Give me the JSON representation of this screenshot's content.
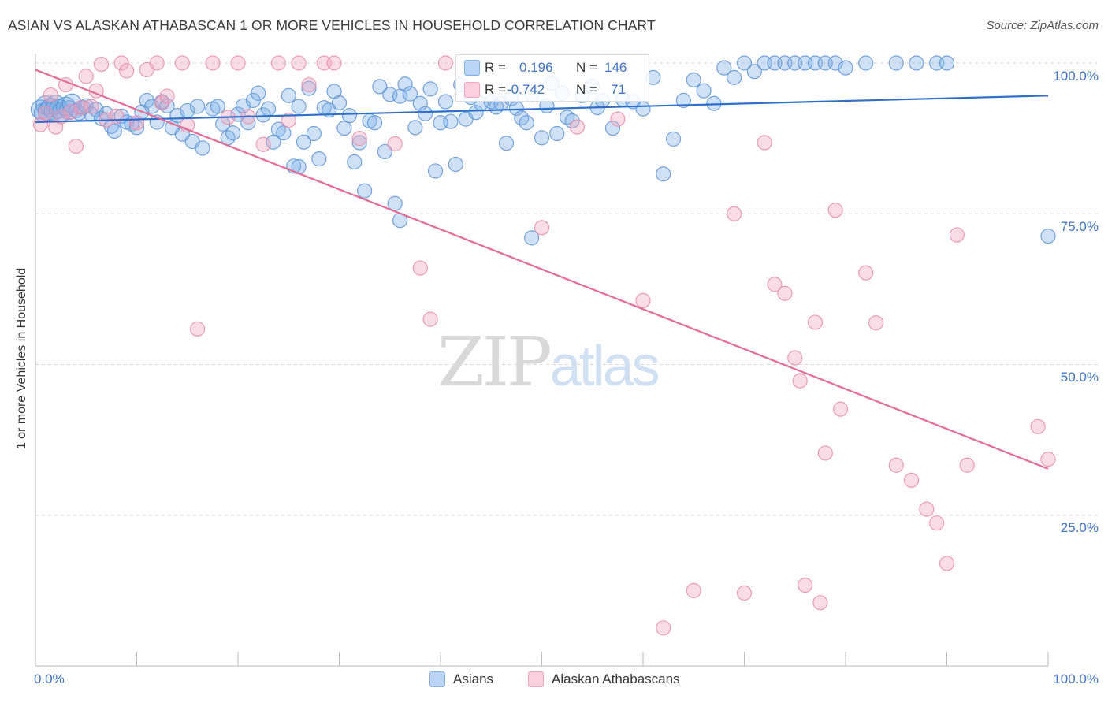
{
  "header": {
    "title": "ASIAN VS ALASKAN ATHABASCAN 1 OR MORE VEHICLES IN HOUSEHOLD CORRELATION CHART",
    "source": "Source: ZipAtlas.com"
  },
  "watermark": {
    "zip": "ZIP",
    "atlas": "atlas"
  },
  "stats": {
    "rows": [
      {
        "r_label": "R =",
        "r_value": "0.196",
        "n_label": "N =",
        "n_value": "146",
        "color": "#7fb0e8"
      },
      {
        "r_label": "R =",
        "r_value": "-0.742",
        "n_label": "N =",
        "n_value": "71",
        "color": "#f3a3bd"
      }
    ]
  },
  "chart_data": {
    "type": "scatter",
    "title": "ASIAN VS ALASKAN ATHABASCAN 1 OR MORE VEHICLES IN HOUSEHOLD CORRELATION CHART",
    "xlabel": "",
    "ylabel": "1 or more Vehicles in Household",
    "xlim": [
      0,
      100
    ],
    "ylim": [
      0,
      100
    ],
    "x_tick_labels": [
      "0.0%",
      "100.0%"
    ],
    "y_tick_labels": [
      {
        "value": 100,
        "label": "100.0%"
      },
      {
        "value": 75,
        "label": "75.0%"
      },
      {
        "value": 50,
        "label": "50.0%"
      },
      {
        "value": 25,
        "label": "25.0%"
      }
    ],
    "grid": true,
    "legend": "bottom-center",
    "series": [
      {
        "name": "Asians",
        "color": "#7fb0e8",
        "stroke": "#5a93d8",
        "trend": {
          "x": [
            0,
            100
          ],
          "y": [
            90.2,
            94.6
          ],
          "color": "#2f6fcc"
        },
        "points": [
          [
            0.5,
            92.3
          ],
          [
            0.8,
            91.8
          ],
          [
            1.0,
            93.0
          ],
          [
            1.2,
            92.0
          ],
          [
            1.5,
            92.6
          ],
          [
            1.8,
            92.1
          ],
          [
            2.0,
            93.1
          ],
          [
            2.3,
            92.4
          ],
          [
            2.6,
            91.9
          ],
          [
            3.0,
            92.8
          ],
          [
            3.3,
            92.2
          ],
          [
            3.6,
            93.3
          ],
          [
            4.0,
            92.1
          ],
          [
            4.3,
            91.7
          ],
          [
            4.7,
            92.6
          ],
          [
            5.0,
            92.9
          ],
          [
            5.5,
            91.5
          ],
          [
            6.0,
            92.3
          ],
          [
            6.5,
            90.8
          ],
          [
            7.0,
            91.6
          ],
          [
            7.5,
            89.5
          ],
          [
            7.8,
            88.7
          ],
          [
            8.5,
            91.2
          ],
          [
            9.0,
            90.2
          ],
          [
            9.5,
            89.9
          ],
          [
            10.0,
            89.3
          ],
          [
            10.5,
            91.9
          ],
          [
            11.0,
            93.8
          ],
          [
            11.5,
            92.8
          ],
          [
            12.0,
            90.2
          ],
          [
            12.5,
            93.6
          ],
          [
            13.0,
            92.9
          ],
          [
            13.5,
            89.3
          ],
          [
            14.0,
            91.3
          ],
          [
            14.5,
            88.2
          ],
          [
            15.0,
            92.1
          ],
          [
            15.5,
            87.0
          ],
          [
            16.0,
            92.8
          ],
          [
            16.5,
            85.9
          ],
          [
            17.5,
            92.4
          ],
          [
            18.0,
            92.8
          ],
          [
            18.5,
            89.9
          ],
          [
            19.0,
            87.6
          ],
          [
            19.5,
            88.4
          ],
          [
            20.0,
            91.5
          ],
          [
            20.5,
            92.9
          ],
          [
            21.0,
            90.1
          ],
          [
            21.5,
            93.8
          ],
          [
            22.0,
            95.0
          ],
          [
            22.5,
            91.4
          ],
          [
            23.0,
            92.4
          ],
          [
            23.5,
            86.9
          ],
          [
            24.0,
            89.0
          ],
          [
            24.5,
            88.4
          ],
          [
            25.0,
            94.6
          ],
          [
            25.5,
            82.9
          ],
          [
            26.0,
            92.8
          ],
          [
            26.5,
            86.9
          ],
          [
            27.0,
            95.8
          ],
          [
            27.5,
            88.3
          ],
          [
            28.0,
            84.1
          ],
          [
            28.5,
            92.6
          ],
          [
            29.0,
            92.2
          ],
          [
            29.5,
            95.3
          ],
          [
            30.0,
            93.4
          ],
          [
            30.5,
            89.2
          ],
          [
            31.0,
            91.3
          ],
          [
            31.5,
            83.6
          ],
          [
            32.0,
            86.8
          ],
          [
            32.5,
            78.8
          ],
          [
            33.0,
            90.4
          ],
          [
            33.5,
            90.1
          ],
          [
            34.0,
            96.1
          ],
          [
            34.5,
            85.3
          ],
          [
            35.0,
            94.8
          ],
          [
            35.5,
            76.7
          ],
          [
            36.0,
            94.5
          ],
          [
            36.5,
            96.5
          ],
          [
            37.0,
            94.9
          ],
          [
            37.5,
            89.3
          ],
          [
            38.0,
            93.3
          ],
          [
            38.5,
            91.6
          ],
          [
            39.0,
            95.7
          ],
          [
            39.5,
            82.1
          ],
          [
            40.0,
            90.1
          ],
          [
            40.5,
            93.6
          ],
          [
            41.0,
            90.3
          ],
          [
            41.5,
            83.2
          ],
          [
            42.0,
            96.4
          ],
          [
            42.5,
            90.7
          ],
          [
            43.0,
            94.3
          ],
          [
            43.5,
            91.8
          ],
          [
            44.0,
            93.3
          ],
          [
            45.0,
            93.6
          ],
          [
            45.5,
            92.7
          ],
          [
            46.0,
            93.3
          ],
          [
            46.5,
            86.7
          ],
          [
            47.0,
            94.1
          ],
          [
            47.5,
            92.5
          ],
          [
            48.0,
            90.9
          ],
          [
            48.5,
            90.1
          ],
          [
            49.0,
            94.8
          ],
          [
            50.0,
            87.6
          ],
          [
            50.5,
            92.9
          ],
          [
            51.0,
            96.6
          ],
          [
            51.5,
            88.3
          ],
          [
            52.0,
            95.0
          ],
          [
            52.5,
            91.0
          ],
          [
            53.0,
            90.4
          ],
          [
            54.0,
            94.6
          ],
          [
            55.0,
            96.1
          ],
          [
            55.5,
            92.6
          ],
          [
            56.0,
            93.8
          ],
          [
            57.0,
            89.2
          ],
          [
            58.0,
            94.0
          ],
          [
            59.0,
            93.6
          ],
          [
            60.0,
            92.4
          ],
          [
            61.0,
            97.6
          ],
          [
            62.0,
            81.6
          ],
          [
            63.0,
            87.4
          ],
          [
            64.0,
            93.8
          ],
          [
            65.0,
            97.2
          ],
          [
            66.0,
            95.4
          ],
          [
            67.0,
            93.3
          ],
          [
            68.0,
            99.2
          ],
          [
            69.0,
            97.6
          ],
          [
            70.0,
            100.0
          ],
          [
            71.0,
            98.6
          ],
          [
            72.0,
            100.0
          ],
          [
            73.0,
            100.0
          ],
          [
            74.0,
            100.0
          ],
          [
            75.0,
            100.0
          ],
          [
            76.0,
            100.0
          ],
          [
            77.0,
            100.0
          ],
          [
            78.0,
            100.0
          ],
          [
            79.0,
            100.0
          ],
          [
            80.0,
            99.2
          ],
          [
            82.0,
            100.0
          ],
          [
            85.0,
            100.0
          ],
          [
            87.0,
            100.0
          ],
          [
            89.0,
            100.0
          ],
          [
            90.0,
            100.0
          ],
          [
            100.0,
            71.3
          ],
          [
            49.0,
            71.0
          ],
          [
            36.0,
            73.9
          ],
          [
            26.0,
            82.8
          ]
        ]
      },
      {
        "name": "Alaskan Athabascans",
        "color": "#f3a3bd",
        "stroke": "#e98bab",
        "trend": {
          "x": [
            0,
            100
          ],
          "y": [
            98.9,
            32.7
          ],
          "color": "#e46995"
        },
        "points": [
          [
            0.5,
            89.8
          ],
          [
            1.0,
            91.7
          ],
          [
            1.5,
            94.7
          ],
          [
            2.0,
            89.4
          ],
          [
            2.5,
            91.1
          ],
          [
            3.0,
            96.4
          ],
          [
            3.5,
            91.9
          ],
          [
            4.0,
            86.2
          ],
          [
            4.5,
            92.6
          ],
          [
            5.0,
            97.8
          ],
          [
            5.5,
            92.8
          ],
          [
            6.0,
            95.4
          ],
          [
            6.5,
            99.8
          ],
          [
            7.0,
            90.6
          ],
          [
            8.0,
            91.2
          ],
          [
            8.5,
            100.0
          ],
          [
            9.0,
            98.7
          ],
          [
            10.0,
            90.1
          ],
          [
            11.0,
            98.9
          ],
          [
            12.0,
            100.0
          ],
          [
            12.5,
            93.4
          ],
          [
            13.0,
            94.5
          ],
          [
            14.5,
            100.0
          ],
          [
            15.0,
            89.7
          ],
          [
            16.0,
            55.9
          ],
          [
            17.5,
            100.0
          ],
          [
            19.0,
            91.0
          ],
          [
            20.0,
            100.0
          ],
          [
            21.0,
            91.1
          ],
          [
            22.5,
            86.5
          ],
          [
            24.0,
            100.0
          ],
          [
            25.0,
            90.5
          ],
          [
            26.0,
            100.0
          ],
          [
            27.0,
            96.4
          ],
          [
            28.5,
            100.0
          ],
          [
            29.5,
            100.0
          ],
          [
            32.0,
            87.5
          ],
          [
            35.5,
            86.6
          ],
          [
            38.0,
            66.0
          ],
          [
            39.0,
            57.5
          ],
          [
            40.5,
            100.0
          ],
          [
            50.0,
            72.7
          ],
          [
            53.5,
            89.4
          ],
          [
            57.5,
            90.7
          ],
          [
            60.0,
            60.6
          ],
          [
            62.0,
            6.3
          ],
          [
            65.0,
            12.5
          ],
          [
            69.0,
            75.0
          ],
          [
            70.0,
            12.1
          ],
          [
            72.0,
            86.8
          ],
          [
            73.0,
            63.3
          ],
          [
            74.0,
            61.8
          ],
          [
            75.0,
            51.1
          ],
          [
            75.5,
            47.3
          ],
          [
            76.0,
            13.4
          ],
          [
            77.0,
            57.0
          ],
          [
            77.5,
            10.5
          ],
          [
            78.0,
            35.3
          ],
          [
            79.0,
            75.6
          ],
          [
            79.5,
            42.6
          ],
          [
            82.0,
            65.2
          ],
          [
            83.0,
            56.9
          ],
          [
            85.0,
            33.3
          ],
          [
            86.5,
            30.8
          ],
          [
            88.0,
            26.0
          ],
          [
            89.0,
            23.7
          ],
          [
            90.0,
            17.0
          ],
          [
            91.0,
            71.5
          ],
          [
            92.0,
            33.3
          ],
          [
            99.0,
            39.7
          ],
          [
            100.0,
            34.3
          ]
        ]
      }
    ]
  },
  "legend": {
    "items": [
      {
        "label": "Asians",
        "color": "#7fb0e8"
      },
      {
        "label": "Alaskan Athabascans",
        "color": "#f3a3bd"
      }
    ]
  }
}
